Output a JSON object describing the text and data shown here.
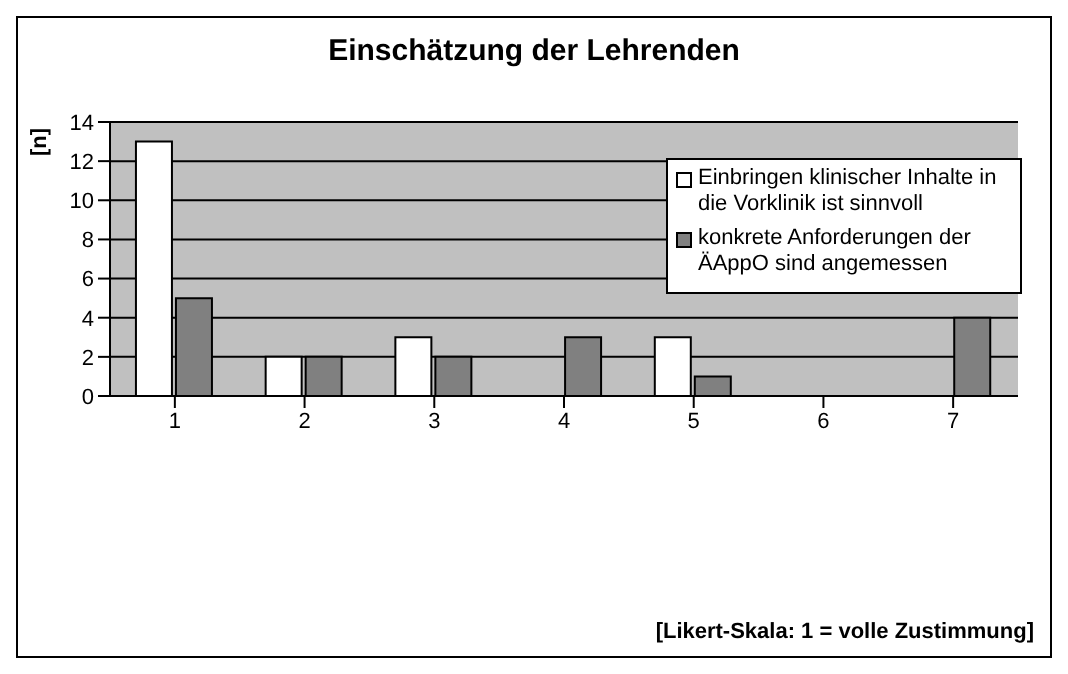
{
  "chart_data": {
    "type": "bar",
    "title": "Einschätzung der Lehrenden",
    "ylabel": "[n]",
    "categories": [
      "1",
      "2",
      "3",
      "4",
      "5",
      "6",
      "7"
    ],
    "series": [
      {
        "name": "Einbringen klinischer Inhalte in die Vorklinik ist sinnvoll",
        "color": "#ffffff",
        "values": [
          13,
          2,
          3,
          0,
          3,
          0,
          0
        ]
      },
      {
        "name": "konkrete Anforderungen der ÄAppO sind angemessen",
        "color": "#808080",
        "values": [
          5,
          2,
          2,
          3,
          1,
          0,
          4
        ]
      }
    ],
    "ylim": [
      0,
      14
    ],
    "yticks": [
      0,
      2,
      4,
      6,
      8,
      10,
      12,
      14
    ],
    "grid": "y",
    "legend": "top right",
    "annotations": [
      "[Likert-Skala: 1 = volle Zustimmung]"
    ]
  }
}
